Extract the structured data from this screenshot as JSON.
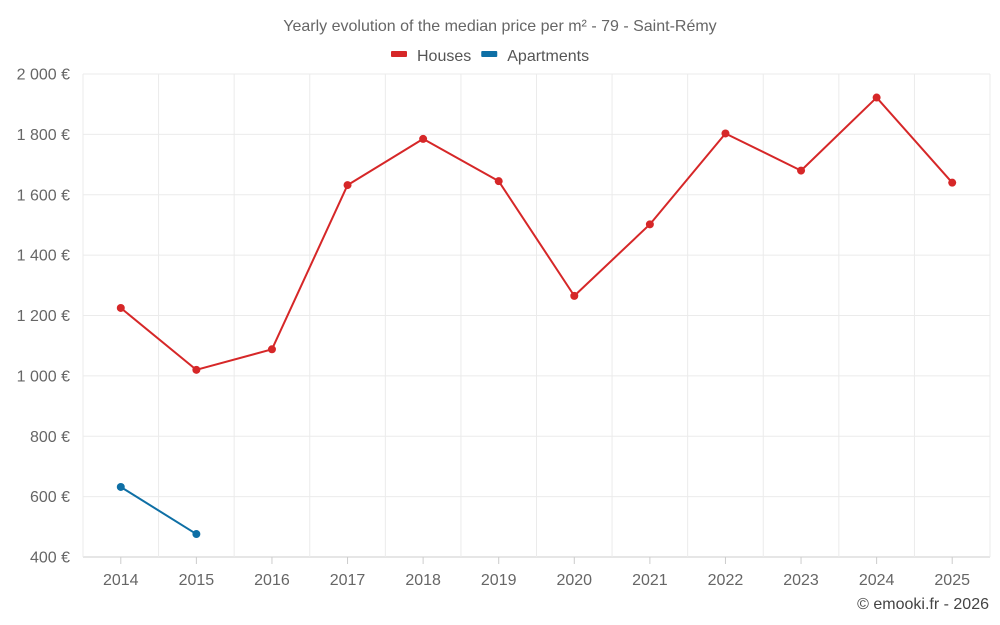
{
  "chart_data": {
    "type": "line",
    "title": "Yearly evolution of the median price per m² - 79 - Saint-Rémy",
    "categories": [
      "2014",
      "2015",
      "2016",
      "2017",
      "2018",
      "2019",
      "2020",
      "2021",
      "2022",
      "2023",
      "2024",
      "2025"
    ],
    "series": [
      {
        "name": "Houses",
        "color": "#d62728",
        "values": [
          1225,
          1020,
          1088,
          1632,
          1785,
          1645,
          1265,
          1502,
          1803,
          1680,
          1922,
          1640
        ]
      },
      {
        "name": "Apartments",
        "color": "#0e6fa5",
        "values": [
          632,
          476,
          null,
          null,
          null,
          null,
          null,
          null,
          null,
          null,
          null,
          null
        ]
      }
    ],
    "ylim": [
      400,
      2000
    ],
    "yticks": [
      400,
      600,
      800,
      1000,
      1200,
      1400,
      1600,
      1800,
      2000
    ],
    "ytick_labels": [
      "400 €",
      "600 €",
      "800 €",
      "1 000 €",
      "1 200 €",
      "1 400 €",
      "1 600 €",
      "1 800 €",
      "2 000 €"
    ],
    "xlabel": "",
    "ylabel": "",
    "legend": "top-center",
    "grid": true
  },
  "credit": "© emooki.fr - 2026"
}
